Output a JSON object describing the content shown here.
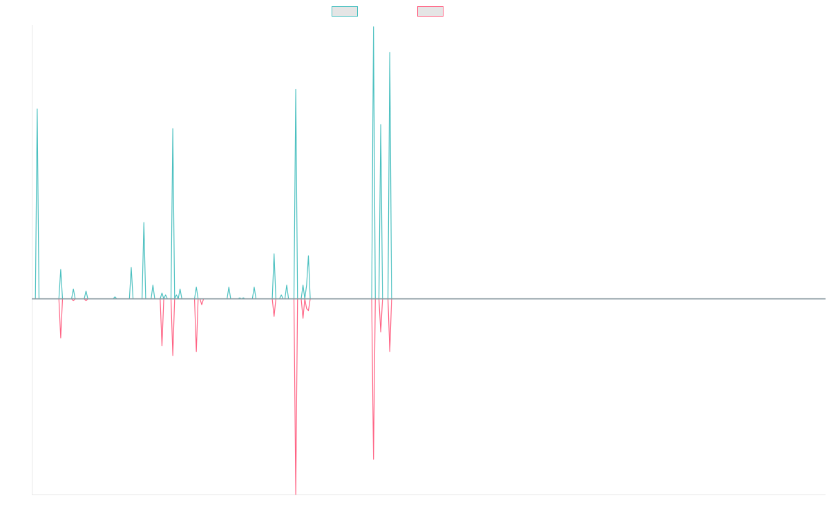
{
  "chart_data": {
    "type": "line",
    "title": "",
    "xlabel": "",
    "ylabel": "",
    "grid": false,
    "legend_position": "top-center",
    "x_count": 440,
    "ylim": [
      -100,
      140
    ],
    "baseline": 0,
    "series": [
      {
        "color": "#4bc0c0",
        "points": [
          [
            3,
            97
          ],
          [
            16,
            15
          ],
          [
            23,
            5
          ],
          [
            30,
            4
          ],
          [
            46,
            1
          ],
          [
            55,
            16
          ],
          [
            62,
            39
          ],
          [
            67,
            7
          ],
          [
            72,
            3
          ],
          [
            74,
            2
          ],
          [
            78,
            87
          ],
          [
            80,
            2
          ],
          [
            82,
            5
          ],
          [
            91,
            6
          ],
          [
            109,
            6
          ],
          [
            115,
            0.5
          ],
          [
            117,
            0.5
          ],
          [
            123,
            6
          ],
          [
            134,
            23
          ],
          [
            138,
            2
          ],
          [
            141,
            7
          ],
          [
            146,
            107
          ],
          [
            150,
            7
          ],
          [
            152,
            7
          ],
          [
            153,
            22
          ],
          [
            189,
            139
          ],
          [
            193,
            89
          ],
          [
            198,
            126
          ]
        ]
      },
      {
        "color": "#ff6384",
        "points": [
          [
            16,
            -20
          ],
          [
            23,
            -1
          ],
          [
            30,
            -1
          ],
          [
            72,
            -24
          ],
          [
            78,
            -29
          ],
          [
            91,
            -27
          ],
          [
            94,
            -3
          ],
          [
            134,
            -9
          ],
          [
            146,
            -100
          ],
          [
            150,
            -10
          ],
          [
            152,
            -5
          ],
          [
            153,
            -6
          ],
          [
            189,
            -82
          ],
          [
            193,
            -17
          ],
          [
            198,
            -27
          ]
        ]
      }
    ]
  }
}
